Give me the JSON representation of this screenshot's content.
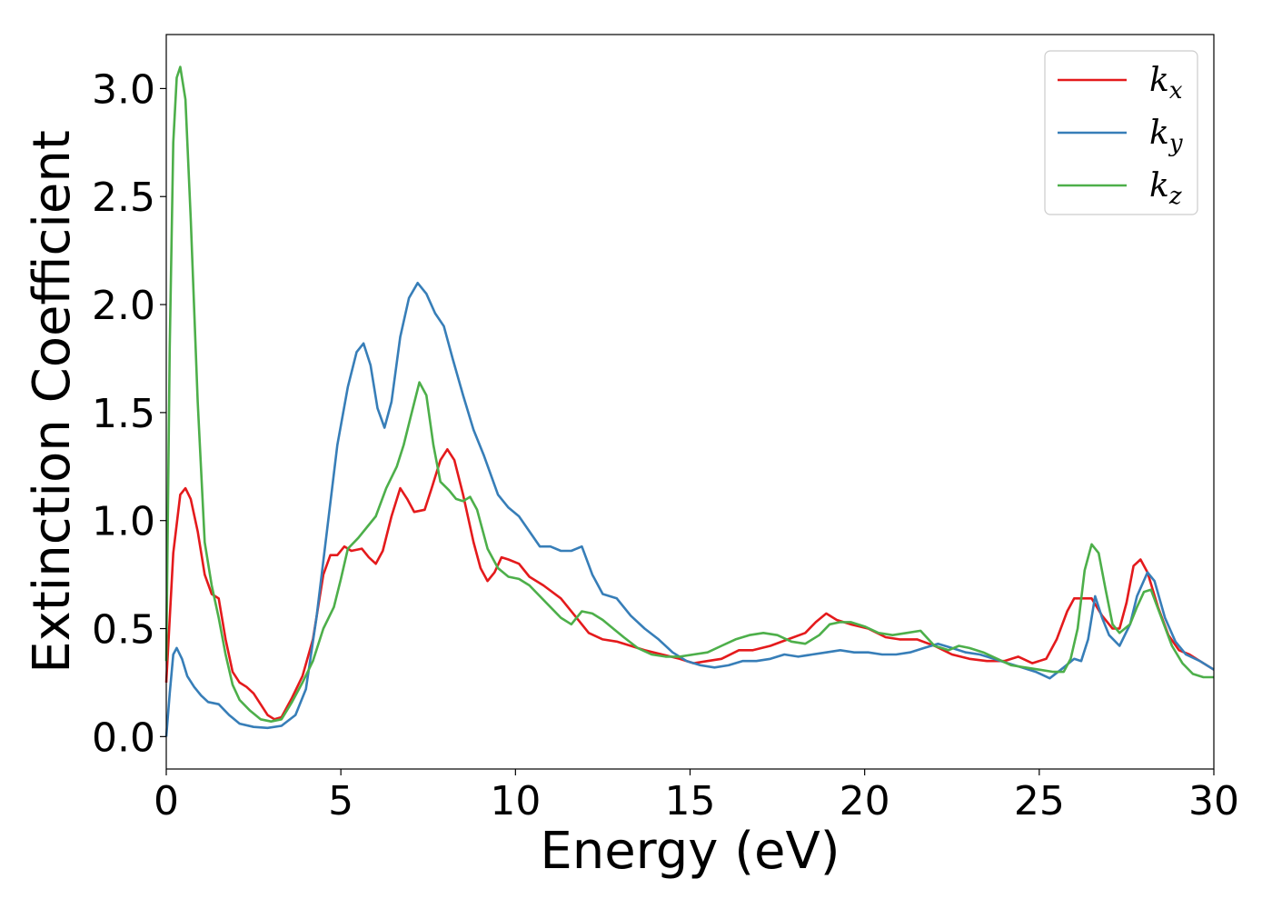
{
  "chart_data": {
    "type": "line",
    "xlabel": "Energy (eV)",
    "ylabel": "Extinction Coefficient",
    "xlim": [
      0,
      30
    ],
    "ylim": [
      -0.15,
      3.25
    ],
    "xticks": [
      "0",
      "5",
      "10",
      "15",
      "20",
      "25",
      "30"
    ],
    "yticks": [
      "0.0",
      "0.5",
      "1.0",
      "1.5",
      "2.0",
      "2.5",
      "3.0"
    ],
    "grid": false,
    "legend_position": "top-right",
    "series": [
      {
        "name": "k_x",
        "legend_base": "k",
        "legend_sub": "x",
        "color": "#e41a1c",
        "points": [
          [
            0,
            0.25
          ],
          [
            0.2,
            0.85
          ],
          [
            0.4,
            1.12
          ],
          [
            0.55,
            1.15
          ],
          [
            0.7,
            1.1
          ],
          [
            0.9,
            0.95
          ],
          [
            1.1,
            0.75
          ],
          [
            1.3,
            0.66
          ],
          [
            1.5,
            0.64
          ],
          [
            1.7,
            0.45
          ],
          [
            1.9,
            0.3
          ],
          [
            2.1,
            0.25
          ],
          [
            2.3,
            0.23
          ],
          [
            2.5,
            0.2
          ],
          [
            2.7,
            0.15
          ],
          [
            2.9,
            0.1
          ],
          [
            3.1,
            0.08
          ],
          [
            3.3,
            0.09
          ],
          [
            3.6,
            0.18
          ],
          [
            3.9,
            0.28
          ],
          [
            4.2,
            0.45
          ],
          [
            4.5,
            0.75
          ],
          [
            4.7,
            0.84
          ],
          [
            4.9,
            0.84
          ],
          [
            5.1,
            0.88
          ],
          [
            5.3,
            0.86
          ],
          [
            5.6,
            0.87
          ],
          [
            5.8,
            0.83
          ],
          [
            6.0,
            0.8
          ],
          [
            6.2,
            0.86
          ],
          [
            6.45,
            1.02
          ],
          [
            6.7,
            1.15
          ],
          [
            6.9,
            1.1
          ],
          [
            7.1,
            1.04
          ],
          [
            7.4,
            1.05
          ],
          [
            7.6,
            1.15
          ],
          [
            7.85,
            1.28
          ],
          [
            8.05,
            1.33
          ],
          [
            8.25,
            1.28
          ],
          [
            8.5,
            1.12
          ],
          [
            8.8,
            0.9
          ],
          [
            9.0,
            0.78
          ],
          [
            9.2,
            0.72
          ],
          [
            9.4,
            0.76
          ],
          [
            9.6,
            0.83
          ],
          [
            9.8,
            0.82
          ],
          [
            10.1,
            0.8
          ],
          [
            10.4,
            0.74
          ],
          [
            10.8,
            0.7
          ],
          [
            11.3,
            0.64
          ],
          [
            11.7,
            0.56
          ],
          [
            12.1,
            0.48
          ],
          [
            12.5,
            0.45
          ],
          [
            12.9,
            0.44
          ],
          [
            13.3,
            0.42
          ],
          [
            13.7,
            0.4
          ],
          [
            14.2,
            0.38
          ],
          [
            14.7,
            0.36
          ],
          [
            15.1,
            0.34
          ],
          [
            15.5,
            0.35
          ],
          [
            15.9,
            0.36
          ],
          [
            16.4,
            0.4
          ],
          [
            16.8,
            0.4
          ],
          [
            17.3,
            0.42
          ],
          [
            17.8,
            0.45
          ],
          [
            18.3,
            0.48
          ],
          [
            18.6,
            0.53
          ],
          [
            18.9,
            0.57
          ],
          [
            19.2,
            0.54
          ],
          [
            19.6,
            0.52
          ],
          [
            20.1,
            0.5
          ],
          [
            20.6,
            0.46
          ],
          [
            21.0,
            0.45
          ],
          [
            21.5,
            0.45
          ],
          [
            22.0,
            0.42
          ],
          [
            22.5,
            0.38
          ],
          [
            23.0,
            0.36
          ],
          [
            23.5,
            0.35
          ],
          [
            24.0,
            0.35
          ],
          [
            24.4,
            0.37
          ],
          [
            24.8,
            0.34
          ],
          [
            25.2,
            0.36
          ],
          [
            25.5,
            0.45
          ],
          [
            25.8,
            0.58
          ],
          [
            26.0,
            0.64
          ],
          [
            26.3,
            0.64
          ],
          [
            26.5,
            0.64
          ],
          [
            26.8,
            0.56
          ],
          [
            27.1,
            0.5
          ],
          [
            27.3,
            0.5
          ],
          [
            27.5,
            0.62
          ],
          [
            27.7,
            0.79
          ],
          [
            27.9,
            0.82
          ],
          [
            28.1,
            0.76
          ],
          [
            28.4,
            0.6
          ],
          [
            28.7,
            0.47
          ],
          [
            29.0,
            0.4
          ],
          [
            29.3,
            0.38
          ],
          [
            29.6,
            0.35
          ],
          [
            30,
            0.31
          ]
        ]
      },
      {
        "name": "k_y",
        "legend_base": "k",
        "legend_sub": "y",
        "color": "#377eb8",
        "points": [
          [
            0,
            0.0
          ],
          [
            0.1,
            0.2
          ],
          [
            0.2,
            0.38
          ],
          [
            0.3,
            0.41
          ],
          [
            0.45,
            0.36
          ],
          [
            0.6,
            0.28
          ],
          [
            0.8,
            0.23
          ],
          [
            1.0,
            0.19
          ],
          [
            1.2,
            0.16
          ],
          [
            1.5,
            0.15
          ],
          [
            1.8,
            0.1
          ],
          [
            2.1,
            0.06
          ],
          [
            2.5,
            0.045
          ],
          [
            2.9,
            0.04
          ],
          [
            3.3,
            0.05
          ],
          [
            3.7,
            0.1
          ],
          [
            4.0,
            0.22
          ],
          [
            4.3,
            0.55
          ],
          [
            4.6,
            0.95
          ],
          [
            4.9,
            1.35
          ],
          [
            5.2,
            1.62
          ],
          [
            5.45,
            1.78
          ],
          [
            5.65,
            1.82
          ],
          [
            5.85,
            1.72
          ],
          [
            6.05,
            1.52
          ],
          [
            6.25,
            1.43
          ],
          [
            6.45,
            1.55
          ],
          [
            6.7,
            1.85
          ],
          [
            6.95,
            2.03
          ],
          [
            7.2,
            2.1
          ],
          [
            7.45,
            2.05
          ],
          [
            7.7,
            1.96
          ],
          [
            7.95,
            1.9
          ],
          [
            8.2,
            1.75
          ],
          [
            8.5,
            1.58
          ],
          [
            8.8,
            1.42
          ],
          [
            9.1,
            1.3
          ],
          [
            9.5,
            1.12
          ],
          [
            9.8,
            1.06
          ],
          [
            10.1,
            1.02
          ],
          [
            10.4,
            0.95
          ],
          [
            10.7,
            0.88
          ],
          [
            11.0,
            0.88
          ],
          [
            11.3,
            0.86
          ],
          [
            11.6,
            0.86
          ],
          [
            11.9,
            0.88
          ],
          [
            12.2,
            0.75
          ],
          [
            12.5,
            0.66
          ],
          [
            12.9,
            0.64
          ],
          [
            13.3,
            0.56
          ],
          [
            13.7,
            0.5
          ],
          [
            14.1,
            0.45
          ],
          [
            14.5,
            0.39
          ],
          [
            14.9,
            0.35
          ],
          [
            15.3,
            0.33
          ],
          [
            15.7,
            0.32
          ],
          [
            16.1,
            0.33
          ],
          [
            16.5,
            0.35
          ],
          [
            16.9,
            0.35
          ],
          [
            17.3,
            0.36
          ],
          [
            17.7,
            0.38
          ],
          [
            18.1,
            0.37
          ],
          [
            18.5,
            0.38
          ],
          [
            18.9,
            0.39
          ],
          [
            19.3,
            0.4
          ],
          [
            19.7,
            0.39
          ],
          [
            20.1,
            0.39
          ],
          [
            20.5,
            0.38
          ],
          [
            20.9,
            0.38
          ],
          [
            21.3,
            0.39
          ],
          [
            21.7,
            0.41
          ],
          [
            22.1,
            0.43
          ],
          [
            22.5,
            0.41
          ],
          [
            22.9,
            0.39
          ],
          [
            23.3,
            0.38
          ],
          [
            23.7,
            0.36
          ],
          [
            24.1,
            0.34
          ],
          [
            24.5,
            0.32
          ],
          [
            24.9,
            0.3
          ],
          [
            25.3,
            0.27
          ],
          [
            25.7,
            0.32
          ],
          [
            26.0,
            0.36
          ],
          [
            26.2,
            0.35
          ],
          [
            26.4,
            0.45
          ],
          [
            26.6,
            0.65
          ],
          [
            26.8,
            0.55
          ],
          [
            27.0,
            0.47
          ],
          [
            27.3,
            0.42
          ],
          [
            27.6,
            0.52
          ],
          [
            27.8,
            0.65
          ],
          [
            28.1,
            0.76
          ],
          [
            28.3,
            0.72
          ],
          [
            28.6,
            0.55
          ],
          [
            28.9,
            0.44
          ],
          [
            29.2,
            0.38
          ],
          [
            29.6,
            0.35
          ],
          [
            30,
            0.31
          ]
        ]
      },
      {
        "name": "k_z",
        "legend_base": "k",
        "legend_sub": "z",
        "color": "#4daf4a",
        "points": [
          [
            0,
            0.35
          ],
          [
            0.1,
            1.8
          ],
          [
            0.2,
            2.75
          ],
          [
            0.3,
            3.05
          ],
          [
            0.4,
            3.1
          ],
          [
            0.55,
            2.95
          ],
          [
            0.7,
            2.4
          ],
          [
            0.9,
            1.55
          ],
          [
            1.1,
            0.9
          ],
          [
            1.3,
            0.7
          ],
          [
            1.5,
            0.55
          ],
          [
            1.7,
            0.38
          ],
          [
            1.9,
            0.24
          ],
          [
            2.1,
            0.17
          ],
          [
            2.4,
            0.12
          ],
          [
            2.7,
            0.08
          ],
          [
            3.0,
            0.07
          ],
          [
            3.3,
            0.08
          ],
          [
            3.6,
            0.16
          ],
          [
            3.9,
            0.25
          ],
          [
            4.2,
            0.35
          ],
          [
            4.5,
            0.5
          ],
          [
            4.8,
            0.6
          ],
          [
            5.0,
            0.73
          ],
          [
            5.2,
            0.87
          ],
          [
            5.5,
            0.92
          ],
          [
            5.8,
            0.98
          ],
          [
            6.0,
            1.02
          ],
          [
            6.3,
            1.15
          ],
          [
            6.6,
            1.25
          ],
          [
            6.8,
            1.35
          ],
          [
            7.0,
            1.48
          ],
          [
            7.25,
            1.64
          ],
          [
            7.45,
            1.58
          ],
          [
            7.65,
            1.35
          ],
          [
            7.85,
            1.18
          ],
          [
            8.1,
            1.14
          ],
          [
            8.3,
            1.1
          ],
          [
            8.5,
            1.09
          ],
          [
            8.7,
            1.11
          ],
          [
            8.9,
            1.05
          ],
          [
            9.2,
            0.87
          ],
          [
            9.5,
            0.78
          ],
          [
            9.8,
            0.74
          ],
          [
            10.1,
            0.73
          ],
          [
            10.4,
            0.7
          ],
          [
            10.7,
            0.65
          ],
          [
            11.0,
            0.6
          ],
          [
            11.3,
            0.55
          ],
          [
            11.6,
            0.52
          ],
          [
            11.9,
            0.58
          ],
          [
            12.2,
            0.57
          ],
          [
            12.5,
            0.54
          ],
          [
            12.8,
            0.5
          ],
          [
            13.1,
            0.46
          ],
          [
            13.5,
            0.41
          ],
          [
            13.9,
            0.38
          ],
          [
            14.3,
            0.37
          ],
          [
            14.7,
            0.37
          ],
          [
            15.1,
            0.38
          ],
          [
            15.5,
            0.39
          ],
          [
            15.9,
            0.42
          ],
          [
            16.3,
            0.45
          ],
          [
            16.7,
            0.47
          ],
          [
            17.1,
            0.48
          ],
          [
            17.5,
            0.47
          ],
          [
            17.9,
            0.44
          ],
          [
            18.3,
            0.43
          ],
          [
            18.7,
            0.47
          ],
          [
            19.0,
            0.52
          ],
          [
            19.3,
            0.53
          ],
          [
            19.6,
            0.53
          ],
          [
            20.0,
            0.51
          ],
          [
            20.4,
            0.48
          ],
          [
            20.8,
            0.47
          ],
          [
            21.2,
            0.48
          ],
          [
            21.6,
            0.49
          ],
          [
            22.0,
            0.42
          ],
          [
            22.4,
            0.4
          ],
          [
            22.7,
            0.42
          ],
          [
            23.0,
            0.41
          ],
          [
            23.4,
            0.39
          ],
          [
            23.8,
            0.36
          ],
          [
            24.2,
            0.33
          ],
          [
            24.6,
            0.32
          ],
          [
            25.0,
            0.31
          ],
          [
            25.4,
            0.3
          ],
          [
            25.7,
            0.3
          ],
          [
            25.9,
            0.36
          ],
          [
            26.1,
            0.5
          ],
          [
            26.3,
            0.77
          ],
          [
            26.5,
            0.89
          ],
          [
            26.7,
            0.85
          ],
          [
            26.9,
            0.68
          ],
          [
            27.1,
            0.52
          ],
          [
            27.3,
            0.48
          ],
          [
            27.6,
            0.52
          ],
          [
            27.8,
            0.6
          ],
          [
            28.0,
            0.67
          ],
          [
            28.2,
            0.68
          ],
          [
            28.5,
            0.55
          ],
          [
            28.8,
            0.42
          ],
          [
            29.1,
            0.34
          ],
          [
            29.4,
            0.29
          ],
          [
            29.7,
            0.275
          ],
          [
            30,
            0.275
          ]
        ]
      }
    ]
  }
}
